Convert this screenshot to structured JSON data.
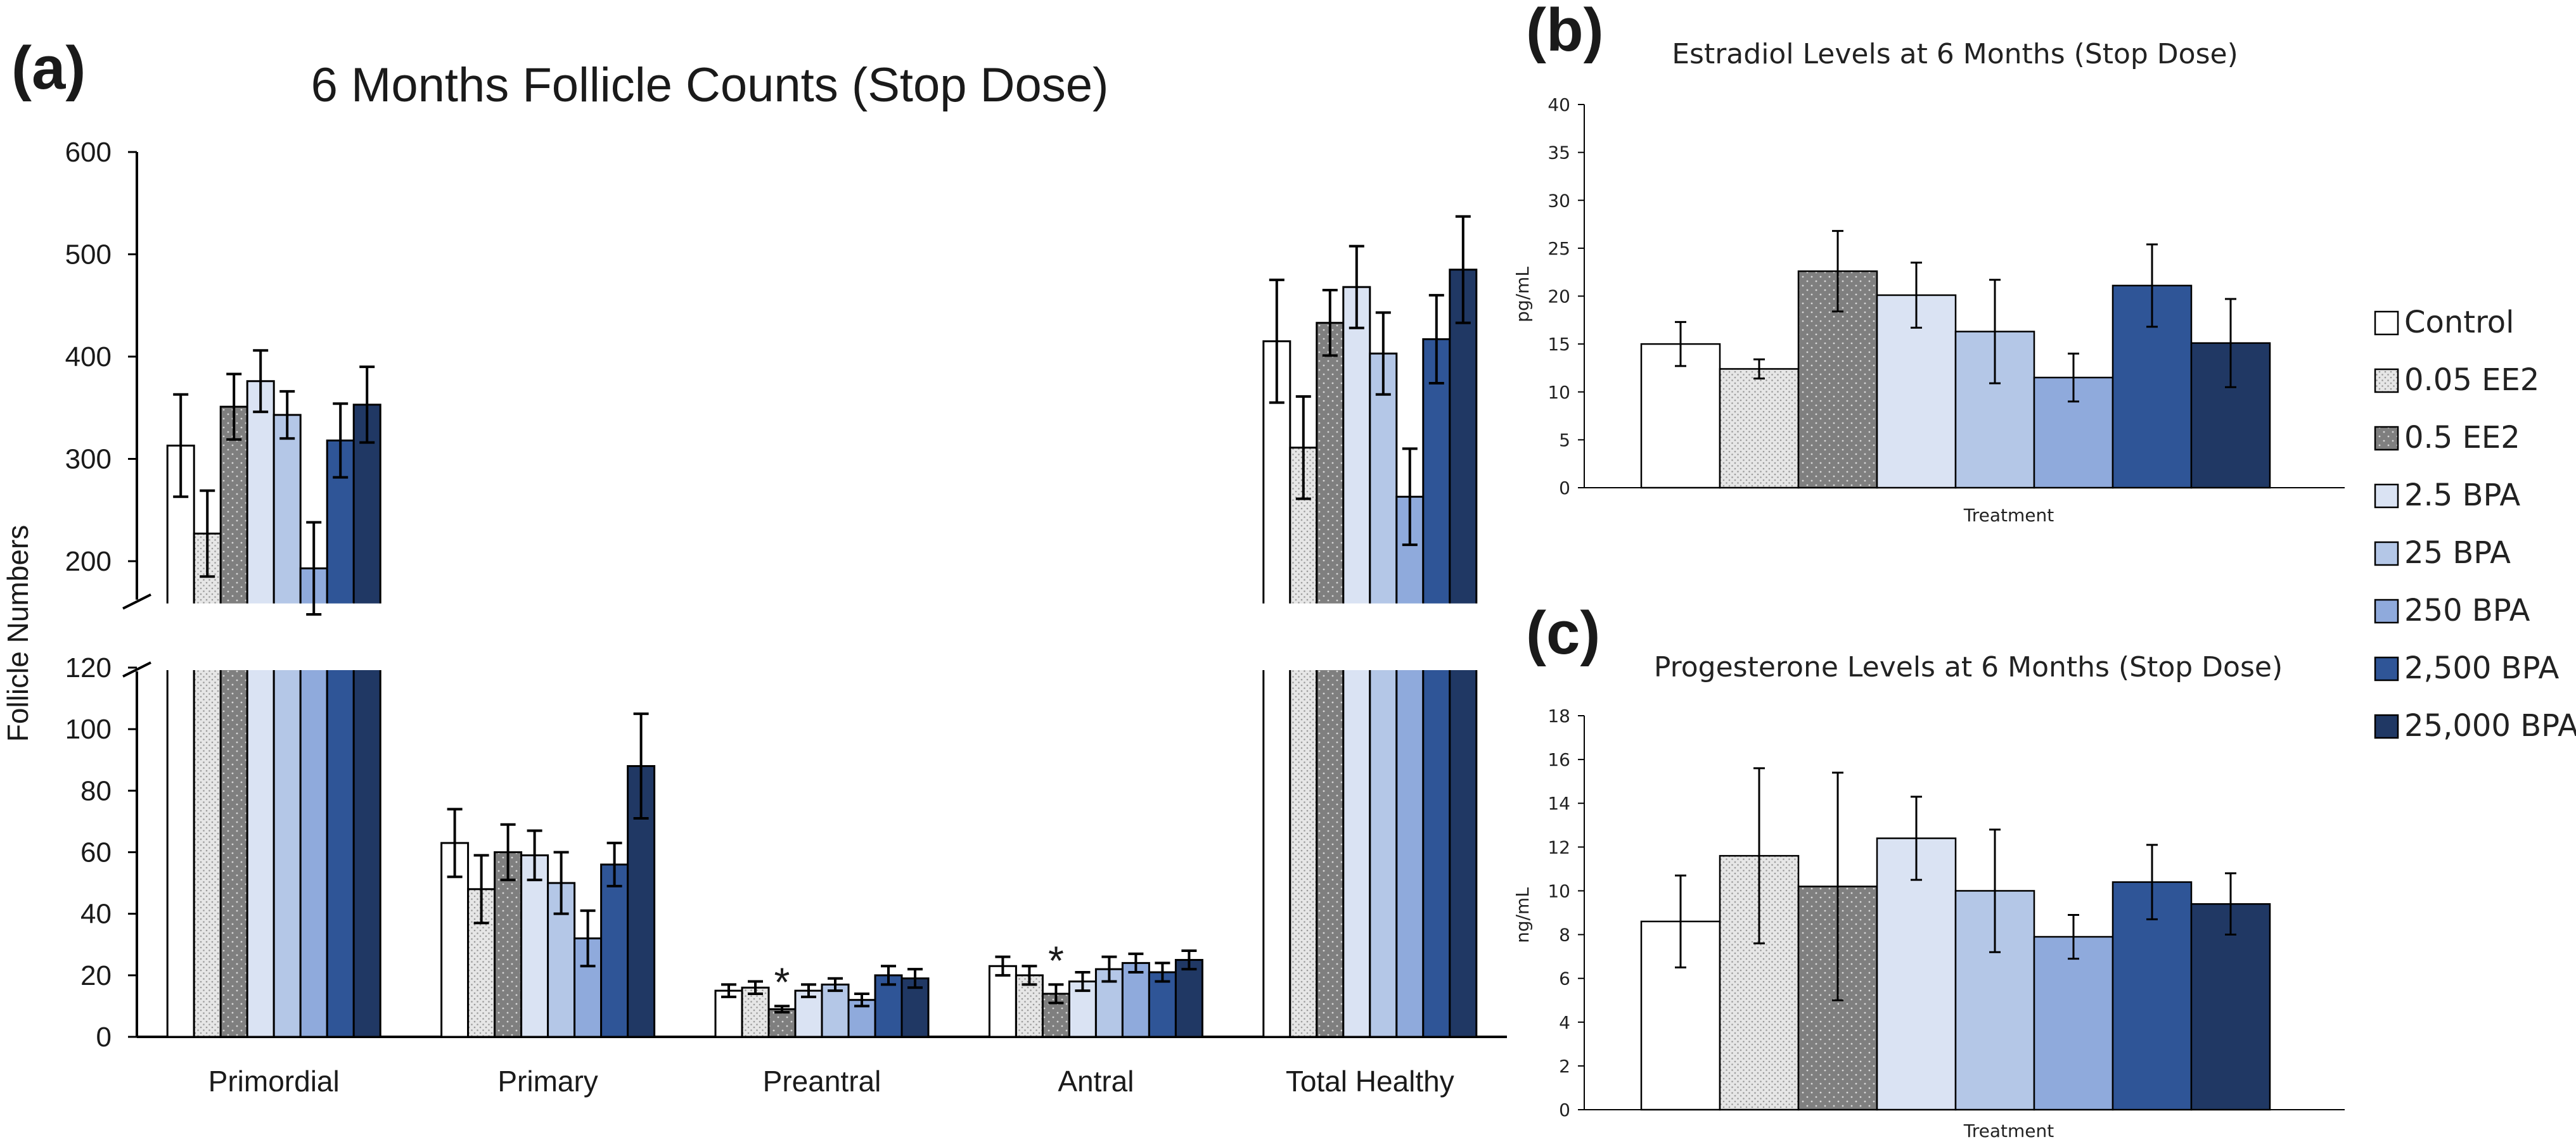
{
  "colors": {
    "control": "#ffffff",
    "ee2_low": "#e3e3e3",
    "ee2_high": "#7f7f7f",
    "bpa_2_5": "#dae3f3",
    "bpa_25": "#b4c7e7",
    "bpa_250": "#8faadc",
    "bpa_2500": "#2f5597",
    "bpa_25000": "#203864",
    "axis": "#000000"
  },
  "legend": {
    "entries": [
      "Control",
      "0.05 EE2",
      "0.5 EE2",
      "2.5 BPA",
      "25 BPA",
      "250 BPA",
      "2,500 BPA",
      "25,000 BPA"
    ]
  },
  "chart_data": [
    {
      "panel_label": "(a)",
      "type": "bar",
      "title": "6 Months Follicle Counts (Stop Dose)",
      "ylabel": "Follicle Numbers",
      "xlabel": "",
      "categories": [
        "Primordial",
        "Primary",
        "Preantral",
        "Antral",
        "Total Healthy"
      ],
      "axis_break": {
        "lower": [
          0,
          120
        ],
        "upper": [
          150,
          600
        ]
      },
      "yticks_lower": [
        "0",
        "20",
        "40",
        "60",
        "80",
        "100",
        "120"
      ],
      "yticks_upper": [
        "200",
        "300",
        "400",
        "500",
        "600"
      ],
      "grid": false,
      "legend_position": "right",
      "series": [
        {
          "name": "Control",
          "values": [
            313,
            63,
            15,
            23,
            415
          ],
          "errors": [
            50,
            11,
            2,
            3,
            60
          ]
        },
        {
          "name": "0.05 EE2",
          "values": [
            227,
            48,
            16,
            20,
            311
          ],
          "errors": [
            42,
            11,
            2,
            3,
            50
          ]
        },
        {
          "name": "0.5 EE2",
          "values": [
            351,
            60,
            9,
            14,
            433
          ],
          "errors": [
            32,
            9,
            1,
            3,
            32
          ]
        },
        {
          "name": "2.5 BPA",
          "values": [
            376,
            59,
            15,
            18,
            468
          ],
          "errors": [
            30,
            8,
            2,
            3,
            40
          ]
        },
        {
          "name": "25 BPA",
          "values": [
            343,
            50,
            17,
            22,
            403
          ],
          "errors": [
            23,
            10,
            2,
            4,
            40
          ]
        },
        {
          "name": "250 BPA",
          "values": [
            193,
            32,
            12,
            24,
            263
          ],
          "errors": [
            45,
            9,
            2,
            3,
            47
          ]
        },
        {
          "name": "2,500 BPA",
          "values": [
            318,
            56,
            20,
            21,
            417
          ],
          "errors": [
            36,
            7,
            3,
            3,
            43
          ]
        },
        {
          "name": "25,000 BPA",
          "values": [
            353,
            88,
            19,
            25,
            485
          ],
          "errors": [
            37,
            17,
            3,
            3,
            52
          ]
        }
      ],
      "annotations": [
        {
          "text": "*",
          "category": "Preantral",
          "series": "0.5 EE2"
        },
        {
          "text": "*",
          "category": "Antral",
          "series": "0.5 EE2"
        }
      ]
    },
    {
      "panel_label": "(b)",
      "type": "bar",
      "title": "Estradiol Levels at 6 Months (Stop Dose)",
      "xlabel": "Treatment",
      "ylabel": "pg/mL",
      "ylim": [
        0,
        40
      ],
      "yticks": [
        "0",
        "5",
        "10",
        "15",
        "20",
        "25",
        "30",
        "35",
        "40"
      ],
      "grid": false,
      "series_names": [
        "Control",
        "0.05 EE2",
        "0.5 EE2",
        "2.5 BPA",
        "25 BPA",
        "250 BPA",
        "2,500 BPA",
        "25,000 BPA"
      ],
      "values": [
        15,
        12.4,
        22.6,
        20.1,
        16.3,
        11.5,
        21.1,
        15.1
      ],
      "errors": [
        2.3,
        1.0,
        4.2,
        3.4,
        5.4,
        2.5,
        4.3,
        4.6
      ]
    },
    {
      "panel_label": "(c)",
      "type": "bar",
      "title": "Progesterone Levels at 6 Months (Stop Dose)",
      "xlabel": "Treatment",
      "ylabel": "ng/mL",
      "ylim": [
        0,
        18
      ],
      "yticks": [
        "0",
        "2",
        "4",
        "6",
        "8",
        "10",
        "12",
        "14",
        "16",
        "18"
      ],
      "grid": false,
      "series_names": [
        "Control",
        "0.05 EE2",
        "0.5 EE2",
        "2.5 BPA",
        "25 BPA",
        "250 BPA",
        "2,500 BPA",
        "25,000 BPA"
      ],
      "values": [
        8.6,
        11.6,
        10.2,
        12.4,
        10.0,
        7.9,
        10.4,
        9.4
      ],
      "errors": [
        2.1,
        4.0,
        5.2,
        1.9,
        2.8,
        1.0,
        1.7,
        1.4
      ]
    }
  ]
}
